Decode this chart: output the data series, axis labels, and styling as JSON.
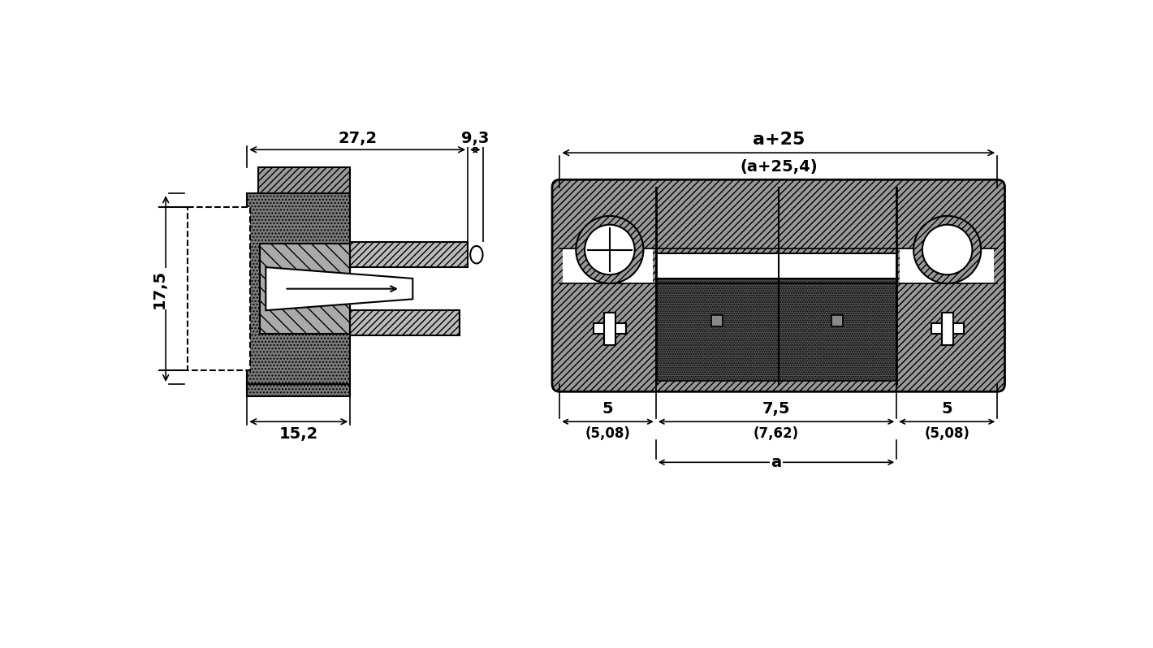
{
  "bg_color": "#ffffff",
  "line_color": "#000000",
  "labels": {
    "dim_272": "27,2",
    "dim_93": "9,3",
    "dim_175": "17,5",
    "dim_152": "15,2",
    "dim_a25": "a+25",
    "dim_a254": "(a+25,4)",
    "dim_5a": "5",
    "dim_508a": "(5,08)",
    "dim_75": "7,5",
    "dim_762": "(7,62)",
    "dim_5b": "5",
    "dim_508b": "(5,08)",
    "dim_a": "a"
  },
  "font_size": 14,
  "font_size_sub": 12
}
